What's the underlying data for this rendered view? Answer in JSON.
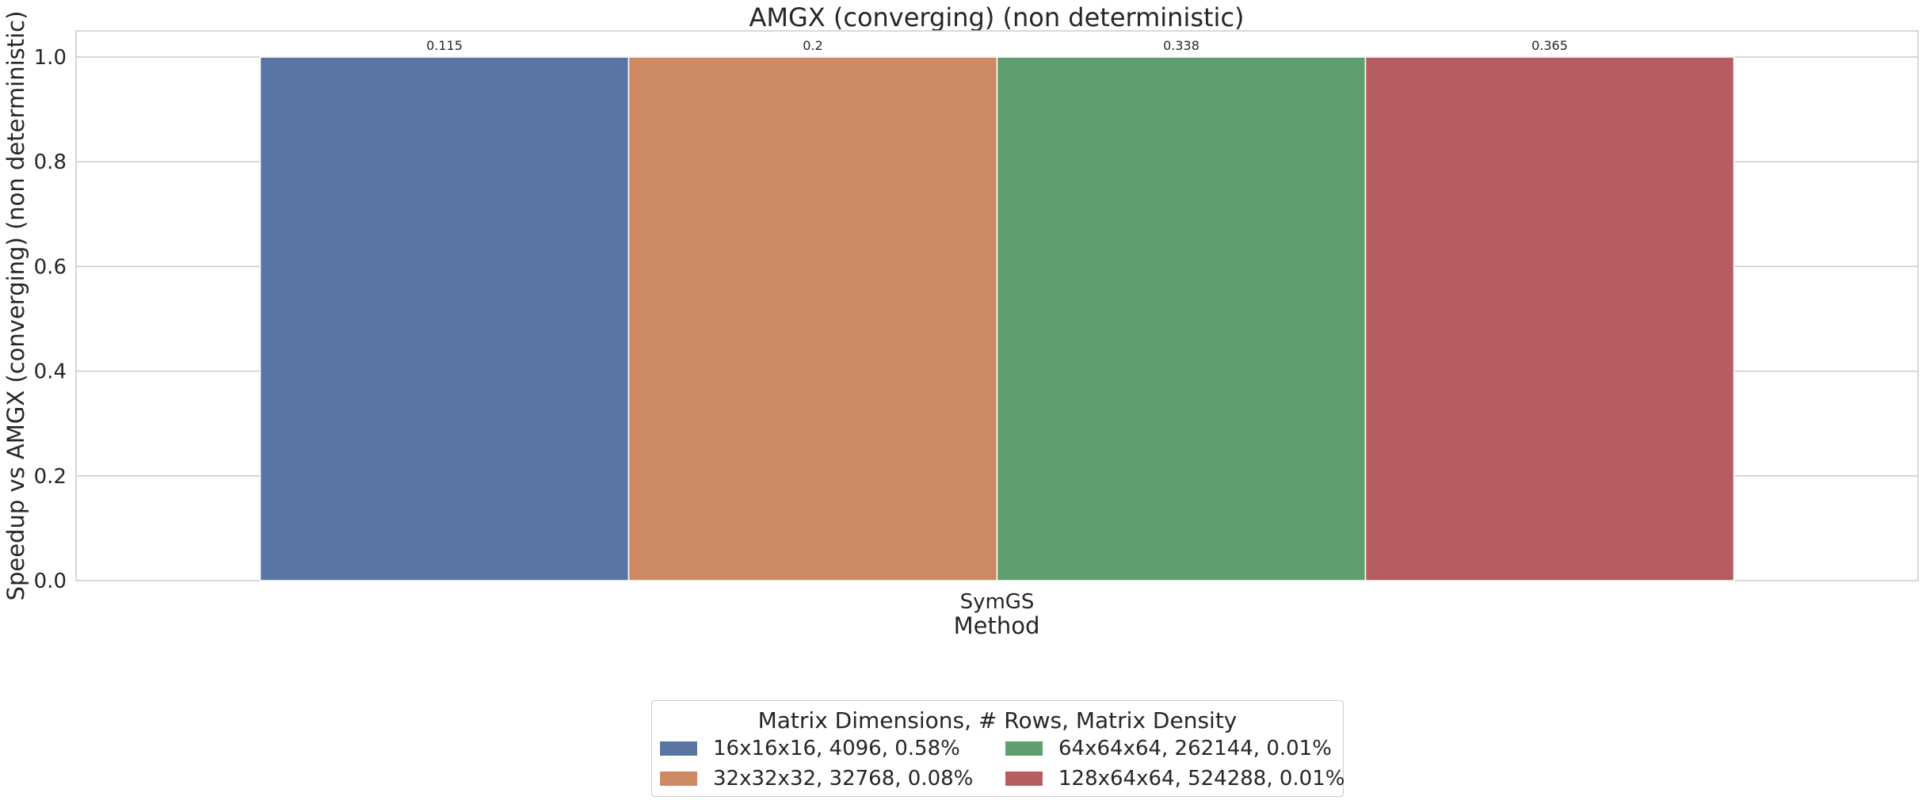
{
  "chart_data": {
    "type": "bar",
    "title": "AMGX (converging) (non deterministic)",
    "xlabel": "Method",
    "ylabel": "Speedup vs AMGX (converging) (non deterministic)",
    "categories": [
      "SymGS"
    ],
    "ylim": [
      0,
      1.05
    ],
    "yticks": [
      "0.0",
      "0.2",
      "0.4",
      "0.6",
      "0.8",
      "1.0"
    ],
    "grid": true,
    "series": [
      {
        "name": "16x16x16, 4096, 0.58%",
        "values": [
          1.0
        ],
        "label": "0.115",
        "color": "#5975a4"
      },
      {
        "name": "32x32x32, 32768, 0.08%",
        "values": [
          1.0
        ],
        "label": "0.2",
        "color": "#cc8963"
      },
      {
        "name": "64x64x64, 262144, 0.01%",
        "values": [
          1.0
        ],
        "label": "0.338",
        "color": "#5f9e6e"
      },
      {
        "name": "128x64x64, 524288, 0.01%",
        "values": [
          1.0
        ],
        "label": "0.365",
        "color": "#b55d60"
      }
    ],
    "legend": {
      "title": "Matrix Dimensions, # Rows, Matrix Density",
      "placement": "bottom-center"
    }
  }
}
